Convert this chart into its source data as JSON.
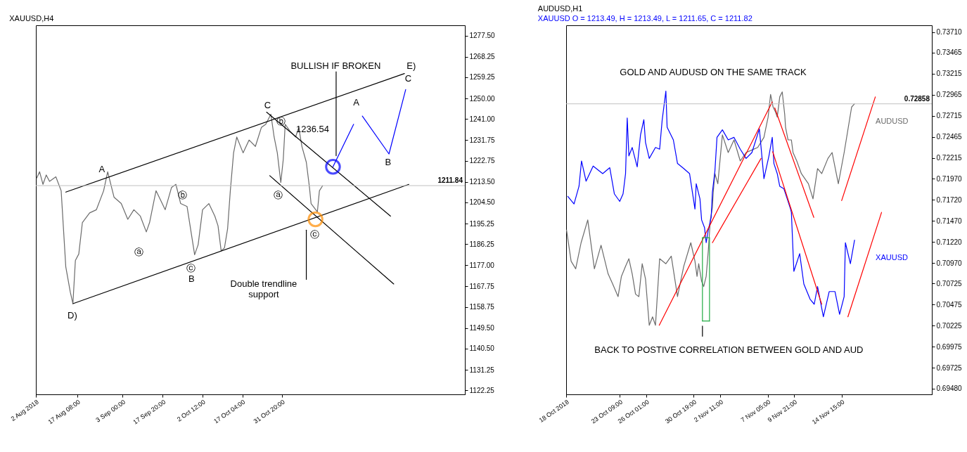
{
  "chart_data": [
    {
      "type": "line",
      "title": "XAUUSD,H4",
      "xlim": [
        "2018-08-02T00:00",
        "2019-01-07T07:00"
      ],
      "xticks": [
        {
          "value": "2018-08-02T00:00",
          "label": "2 Aug 2018"
        },
        {
          "value": "2018-08-17T08:00",
          "label": "17 Aug 08:00"
        },
        {
          "value": "2018-09-03T00:00",
          "label": "3 Sep 00:00"
        },
        {
          "value": "2018-09-17T20:00",
          "label": "17 Sep 20:00"
        },
        {
          "value": "2018-10-02T12:00",
          "label": "2 Oct 12:00"
        },
        {
          "value": "2018-10-17T04:00",
          "label": "17 Oct 04:00"
        },
        {
          "value": "2018-10-31T20:00",
          "label": "31 Oct 20:00"
        }
      ],
      "ylim": [
        1120.5,
        1282
      ],
      "yticks": [
        {
          "value": 1277.5,
          "label": "1277.50"
        },
        {
          "value": 1268.25,
          "label": "1268.25"
        },
        {
          "value": 1259.25,
          "label": "1259.25"
        },
        {
          "value": 1250,
          "label": "1250.00"
        },
        {
          "value": 1241,
          "label": "1241.00"
        },
        {
          "value": 1231.75,
          "label": "1231.75"
        },
        {
          "value": 1222.75,
          "label": "1222.75"
        },
        {
          "value": 1213.5,
          "label": "1213.50"
        },
        {
          "value": 1204.5,
          "label": "1204.50"
        },
        {
          "value": 1195.25,
          "label": "1195.25"
        },
        {
          "value": 1186.25,
          "label": "1186.25"
        },
        {
          "value": 1177,
          "label": "1177.00"
        },
        {
          "value": 1167.75,
          "label": "1167.75"
        },
        {
          "value": 1158.75,
          "label": "1158.75"
        },
        {
          "value": 1149.5,
          "label": "1149.50"
        },
        {
          "value": 1140.5,
          "label": "1140.50"
        },
        {
          "value": 1131.25,
          "label": "1131.25"
        },
        {
          "value": 1122.25,
          "label": "1122.25"
        }
      ],
      "series": [
        {
          "color": "#6b6b6b",
          "x": [
            "2018-08-02T07:00",
            "2018-08-03T09:00",
            "2018-08-04T15:00",
            "2018-08-05T20:00",
            "2018-08-07T01:00",
            "2018-08-09T09:00",
            "2018-08-11T08:00",
            "2018-08-13T01:00",
            "2018-08-14T17:00",
            "2018-08-15T16:00",
            "2018-08-16T14:00",
            "2018-08-17T20:00",
            "2018-08-19T04:00",
            "2018-08-21T20:00",
            "2018-08-24T08:00",
            "2018-08-27T00:00",
            "2018-08-28T12:00",
            "2018-08-30T20:00",
            "2018-09-02T12:00",
            "2018-09-04T22:00",
            "2018-09-07T04:00",
            "2018-09-09T13:00",
            "2018-09-11T18:00",
            "2018-09-12T23:00",
            "2018-09-15T08:00",
            "2018-09-16T12:00",
            "2018-09-18T17:00",
            "2018-09-21T01:00",
            "2018-09-22T16:00",
            "2018-09-24T10:00",
            "2018-09-26T19:00",
            "2018-09-29T14:00",
            "2018-09-30T21:00",
            "2018-10-02T12:00",
            "2018-10-04T20:00",
            "2018-10-07T01:00",
            "2018-10-08T05:00",
            "2018-10-09T09:00",
            "2018-10-10T14:00",
            "2018-10-11T18:00",
            "2018-10-12T18:00",
            "2018-10-13T23:00",
            "2018-10-15T03:00",
            "2018-10-17T11:00",
            "2018-10-19T16:00",
            "2018-10-22T00:00",
            "2018-10-24T05:00",
            "2018-10-25T20:00",
            "2018-10-27T17:00",
            "2018-10-28T22:00",
            "2018-10-30T02:00",
            "2018-10-31T09:00",
            "2018-11-01T07:00",
            "2018-11-02T00:00",
            "2018-11-03T15:00",
            "2018-11-05T20:00",
            "2018-11-07T00:00",
            "2018-11-08T04:00",
            "2018-11-09T19:00",
            "2018-11-10T23:00",
            "2018-11-11T13:00",
            "2018-11-13T21:00",
            "2018-11-14T15:00",
            "2018-11-15T19:00"
          ],
          "values": [
            1215.1,
            1217.9,
            1212.4,
            1216.5,
            1213.7,
            1215.7,
            1209.6,
            1176.3,
            1165.2,
            1160.2,
            1179.1,
            1181.9,
            1195.7,
            1199.9,
            1201.3,
            1209.6,
            1217.9,
            1206.8,
            1204.0,
            1197.1,
            1201.3,
            1198.5,
            1191.6,
            1195.7,
            1209.6,
            1206.8,
            1201.3,
            1211.0,
            1212.4,
            1204.0,
            1202.7,
            1181.6,
            1186.0,
            1201.3,
            1204.0,
            1198.5,
            1194.3,
            1183.3,
            1184.6,
            1193.0,
            1209.6,
            1226.2,
            1233.1,
            1226.2,
            1231.8,
            1229.0,
            1237.3,
            1238.7,
            1243.1,
            1233.1,
            1226.2,
            1213.2,
            1223.4,
            1238.7,
            1235.9,
            1233.1,
            1237.3,
            1229.0,
            1222.1,
            1211.0,
            1204.0,
            1200.4,
            1209.6,
            1211.8
          ]
        },
        {
          "color": "#000000",
          "x": [
            "2018-08-13T01:00",
            "2018-12-16T00:00"
          ],
          "values": [
            1209.0,
            1260.9
          ]
        },
        {
          "color": "#000000",
          "x": [
            "2018-08-15T16:00",
            "2018-12-17T15:00"
          ],
          "values": [
            1160.2,
            1212.4
          ]
        },
        {
          "color": "#000000",
          "x": [
            "2018-10-26T03:00",
            "2018-12-10T21:00"
          ],
          "values": [
            1244.0,
            1198.5
          ]
        },
        {
          "color": "#000000",
          "x": [
            "2018-10-27T07:00",
            "2018-12-12T01:00"
          ],
          "values": [
            1216.2,
            1168.8
          ]
        },
        {
          "color": "#0000ff",
          "x": [
            "2018-11-19T15:00",
            "2018-11-27T06:00"
          ],
          "values": [
            1220.1,
            1238.7
          ]
        },
        {
          "color": "#0000ff",
          "x": [
            "2018-11-30T11:00",
            "2018-12-10T07:00",
            "2018-12-16T11:00"
          ],
          "values": [
            1242.3,
            1225.7,
            1253.9
          ]
        },
        {
          "color": "#000000",
          "x": [
            "2018-11-20T19:00",
            "2018-11-20T19:00"
          ],
          "values": [
            1261.7,
            1224.9
          ]
        },
        {
          "color": "#000000",
          "x": [
            "2018-11-09T19:00",
            "2018-11-09T19:00"
          ],
          "values": [
            1192.4,
            1170.8
          ]
        },
        {
          "type": "scatter",
          "marker": "circle",
          "color": "#0000ff",
          "x": [
            "2018-11-19T15:00"
          ],
          "values": [
            1220.1
          ]
        },
        {
          "type": "scatter",
          "marker": "circle",
          "color": "#ff8c00",
          "x": [
            "2018-11-13T04:00"
          ],
          "values": [
            1197.1
          ]
        }
      ],
      "ref_lines": [
        {
          "axis": "y",
          "value": 1211.84,
          "label": "1211.84",
          "color": "#c0c0c0"
        }
      ],
      "annotations": [
        "A",
        "B",
        "C",
        "ⓐ",
        "ⓑ",
        "ⓒ",
        "ⓐ",
        "ⓑ",
        "ⓒ",
        "D)",
        "E)",
        "C",
        "A",
        "B",
        "BULLISH IF BROKEN",
        "Double trendline\nsupport",
        "1236.54"
      ]
    },
    {
      "type": "line",
      "title": "AUDUSD,H1",
      "subtitle": "XAUUSD O = 1213.49, H = 1213.49, L = 1211.65, C = 1211.82",
      "xlim": [
        "2018-10-18T00:00",
        "2018-11-23T16:00"
      ],
      "xticks": [
        {
          "value": "2018-10-18T00:00",
          "label": "18 Oct 2018"
        },
        {
          "value": "2018-10-23T09:00",
          "label": "23 Oct 09:00"
        },
        {
          "value": "2018-10-26T01:00",
          "label": "26 Oct 01:00"
        },
        {
          "value": "2018-10-30T19:00",
          "label": "30 Oct 19:00"
        },
        {
          "value": "2018-11-02T11:00",
          "label": "2 Nov 11:00"
        },
        {
          "value": "2018-11-07T05:00",
          "label": "7 Nov 05:00"
        },
        {
          "value": "2018-11-09T21:00",
          "label": "9 Nov 21:00"
        },
        {
          "value": "2018-11-14T15:00",
          "label": "14 Nov 15:00"
        }
      ],
      "ylim": [
        0.6941,
        0.7379
      ],
      "yticks": [
        {
          "value": 0.7371,
          "label": "0.73710"
        },
        {
          "value": 0.73465,
          "label": "0.73465"
        },
        {
          "value": 0.73215,
          "label": "0.73215"
        },
        {
          "value": 0.72965,
          "label": "0.72965"
        },
        {
          "value": 0.72715,
          "label": "0.72715"
        },
        {
          "value": 0.72465,
          "label": "0.72465"
        },
        {
          "value": 0.72215,
          "label": "0.72215"
        },
        {
          "value": 0.7197,
          "label": "0.71970"
        },
        {
          "value": 0.7172,
          "label": "0.71720"
        },
        {
          "value": 0.7147,
          "label": "0.71470"
        },
        {
          "value": 0.7122,
          "label": "0.71220"
        },
        {
          "value": 0.7097,
          "label": "0.70970"
        },
        {
          "value": 0.70725,
          "label": "0.70725"
        },
        {
          "value": 0.70475,
          "label": "0.70475"
        },
        {
          "value": 0.70225,
          "label": "0.70225"
        },
        {
          "value": 0.69975,
          "label": "0.69975"
        },
        {
          "value": 0.69725,
          "label": "0.69725"
        },
        {
          "value": 0.6948,
          "label": "0.69480"
        }
      ],
      "series": [
        {
          "name": "AUDUSD",
          "color": "#6b6b6b",
          "x": [
            "2018-10-18T01:00",
            "2018-10-18T12:00",
            "2018-10-18T23:00",
            "2018-10-19T12:00",
            "2018-10-20T04:00",
            "2018-10-20T20:00",
            "2018-10-21T12:00",
            "2018-10-22T05:00",
            "2018-10-22T16:00",
            "2018-10-23T05:00",
            "2018-10-23T13:00",
            "2018-10-23T23:00",
            "2018-10-24T07:00",
            "2018-10-24T15:00",
            "2018-10-24T23:00",
            "2018-10-25T07:00",
            "2018-10-25T15:00",
            "2018-10-25T23:00",
            "2018-10-26T08:00",
            "2018-10-26T16:00",
            "2018-10-26T23:00",
            "2018-10-27T09:00",
            "2018-10-28T00:00",
            "2018-10-28T13:00",
            "2018-10-29T04:00",
            "2018-10-29T19:00",
            "2018-10-30T12:00",
            "2018-10-30T22:00",
            "2018-10-31T03:00",
            "2018-10-31T07:00",
            "2018-10-31T14:00",
            "2018-10-31T19:00",
            "2018-11-01T01:00",
            "2018-11-01T06:00",
            "2018-11-01T11:00",
            "2018-11-01T16:00",
            "2018-11-01T18:00",
            "2018-11-01T22:00",
            "2018-11-02T05:00",
            "2018-11-02T16:00",
            "2018-11-03T06:00",
            "2018-11-03T20:00",
            "2018-11-04T11:00",
            "2018-11-05T01:00",
            "2018-11-05T15:00",
            "2018-11-06T05:00",
            "2018-11-06T20:00",
            "2018-11-07T06:00",
            "2018-11-07T12:00",
            "2018-11-07T18:00",
            "2018-11-08T00:00",
            "2018-11-08T04:00",
            "2018-11-08T10:00",
            "2018-11-08T16:00",
            "2018-11-08T22:00",
            "2018-11-09T00:00",
            "2018-11-09T06:00",
            "2018-11-09T14:00",
            "2018-11-09T18:00",
            "2018-11-10T03:00",
            "2018-11-10T14:00",
            "2018-11-11T07:00",
            "2018-11-11T18:00",
            "2018-11-12T05:00",
            "2018-11-12T15:00",
            "2018-11-13T06:00",
            "2018-11-13T16:00",
            "2018-11-14T07:00",
            "2018-11-14T21:00",
            "2018-11-15T05:00",
            "2018-11-15T15:00",
            "2018-11-15T22:00"
          ],
          "values": [
            0.7136,
            0.7099,
            0.709,
            0.7121,
            0.7148,
            0.709,
            0.7118,
            0.7084,
            0.7072,
            0.7057,
            0.7081,
            0.7093,
            0.7102,
            0.7084,
            0.706,
            0.7057,
            0.7096,
            0.7078,
            0.7023,
            0.7033,
            0.7023,
            0.7102,
            0.7096,
            0.7105,
            0.7057,
            0.7093,
            0.7121,
            0.7099,
            0.7081,
            0.7096,
            0.7075,
            0.7069,
            0.7081,
            0.7111,
            0.7148,
            0.7163,
            0.7181,
            0.7203,
            0.7191,
            0.7249,
            0.7228,
            0.7243,
            0.7218,
            0.7228,
            0.7231,
            0.7234,
            0.7246,
            0.727,
            0.7297,
            0.7282,
            0.7276,
            0.727,
            0.7294,
            0.73,
            0.7273,
            0.7258,
            0.7243,
            0.7243,
            0.7228,
            0.7218,
            0.7203,
            0.7191,
            0.7173,
            0.7209,
            0.7203,
            0.7221,
            0.7228,
            0.7191,
            0.7228,
            0.7252,
            0.7282,
            0.72858
          ]
        },
        {
          "name": "XAUUSD",
          "color": "#0000ff",
          "x": [
            "2018-10-18T04:00",
            "2018-10-18T19:00",
            "2018-10-19T07:00",
            "2018-10-19T13:00",
            "2018-10-20T00:00",
            "2018-10-20T17:00",
            "2018-10-21T16:00",
            "2018-10-22T09:00",
            "2018-10-22T20:00",
            "2018-10-23T09:00",
            "2018-10-23T17:00",
            "2018-10-23T23:00",
            "2018-10-24T03:00",
            "2018-10-24T07:00",
            "2018-10-24T15:00",
            "2018-10-25T03:00",
            "2018-10-25T11:00",
            "2018-10-25T19:00",
            "2018-10-25T23:00",
            "2018-10-26T08:00",
            "2018-10-26T23:00",
            "2018-10-27T09:00",
            "2018-10-27T15:00",
            "2018-10-28T00:00",
            "2018-10-28T03:00",
            "2018-10-28T18:00",
            "2018-10-29T04:00",
            "2018-10-29T19:00",
            "2018-10-30T09:00",
            "2018-10-30T22:00",
            "2018-10-31T01:00",
            "2018-10-31T10:00",
            "2018-10-31T14:00",
            "2018-10-31T21:00",
            "2018-11-01T01:00",
            "2018-11-01T06:00",
            "2018-11-01T13:00",
            "2018-11-01T16:00",
            "2018-11-01T22:00",
            "2018-11-02T03:00",
            "2018-11-02T16:00",
            "2018-11-03T06:00",
            "2018-11-03T20:00",
            "2018-11-04T11:00",
            "2018-11-05T01:00",
            "2018-11-05T15:00",
            "2018-11-06T09:00",
            "2018-11-06T20:00",
            "2018-11-07T08:00",
            "2018-11-07T16:00",
            "2018-11-07T20:00",
            "2018-11-08T04:00",
            "2018-11-08T10:00",
            "2018-11-08T20:00",
            "2018-11-09T04:00",
            "2018-11-09T12:00",
            "2018-11-09T14:00",
            "2018-11-09T20:00",
            "2018-11-10T10:00",
            "2018-11-10T20:00",
            "2018-11-11T11:00",
            "2018-11-11T21:00",
            "2018-11-12T05:00",
            "2018-11-12T19:00",
            "2018-11-13T09:00",
            "2018-11-13T23:00",
            "2018-11-14T10:00",
            "2018-11-14T21:00",
            "2018-11-15T00:00",
            "2018-11-15T12:00",
            "2018-11-15T22:00"
          ],
          "values": [
            0.7176,
            0.7167,
            0.7188,
            0.7218,
            0.7194,
            0.7212,
            0.7203,
            0.721,
            0.7179,
            0.717,
            0.7179,
            0.7203,
            0.7269,
            0.7224,
            0.7234,
            0.7211,
            0.7249,
            0.7267,
            0.724,
            0.7221,
            0.7234,
            0.7232,
            0.7266,
            0.7301,
            0.7258,
            0.7243,
            0.7215,
            0.7209,
            0.7203,
            0.7161,
            0.7191,
            0.7173,
            0.7148,
            0.7139,
            0.7121,
            0.7136,
            0.7151,
            0.7181,
            0.7206,
            0.7246,
            0.7255,
            0.7243,
            0.7246,
            0.7232,
            0.7221,
            0.7228,
            0.7256,
            0.7197,
            0.7224,
            0.7246,
            0.7215,
            0.7203,
            0.7188,
            0.7185,
            0.7173,
            0.7161,
            0.7157,
            0.7087,
            0.7108,
            0.7072,
            0.7054,
            0.7048,
            0.7069,
            0.7033,
            0.7063,
            0.7063,
            0.7036,
            0.7057,
            0.7121,
            0.7096,
            0.7124
          ]
        },
        {
          "color": "#ff0000",
          "x": [
            "2018-10-27T08:00",
            "2018-11-07T16:00"
          ],
          "values": [
            0.7023,
            0.7288
          ]
        },
        {
          "color": "#ff0000",
          "x": [
            "2018-11-01T16:00",
            "2018-11-06T13:00"
          ],
          "values": [
            0.7121,
            0.7221
          ]
        },
        {
          "color": "#ff0000",
          "x": [
            "2018-11-07T22:00",
            "2018-11-11T20:00"
          ],
          "values": [
            0.7281,
            0.7151
          ]
        },
        {
          "color": "#ff0000",
          "x": [
            "2018-11-07T17:00",
            "2018-11-12T15:00"
          ],
          "values": [
            0.7229,
            0.7048
          ]
        },
        {
          "color": "#ff0000",
          "x": [
            "2018-11-14T15:00",
            "2018-11-18T00:00"
          ],
          "values": [
            0.7171,
            0.7294
          ]
        },
        {
          "color": "#ff0000",
          "x": [
            "2018-11-15T06:00",
            "2018-11-18T15:00"
          ],
          "values": [
            0.7033,
            0.7157
          ]
        },
        {
          "color": "#22aa44",
          "x": [
            "2018-10-31T16:00",
            "2018-11-01T09:00"
          ],
          "values": [
            0.7127,
            0.7127
          ]
        },
        {
          "color": "#22aa44",
          "x": [
            "2018-11-01T09:00",
            "2018-11-01T09:00"
          ],
          "values": [
            0.7127,
            0.7028
          ]
        },
        {
          "color": "#22aa44",
          "x": [
            "2018-10-31T16:00",
            "2018-11-01T09:00"
          ],
          "values": [
            0.7028,
            0.7028
          ]
        },
        {
          "color": "#22aa44",
          "x": [
            "2018-10-31T16:00",
            "2018-10-31T16:00"
          ],
          "values": [
            0.7127,
            0.7028
          ]
        },
        {
          "color": "#000000",
          "x": [
            "2018-10-31T16:00",
            "2018-10-31T16:00"
          ],
          "values": [
            0.701,
            0.7022
          ]
        }
      ],
      "ref_lines": [
        {
          "axis": "y",
          "value": 0.72858,
          "label": "0.72858",
          "color": "#c0c0c0"
        }
      ],
      "annotations": [
        "GOLD AND AUDUSD ON THE SAME TRACK",
        "BACK TO POSTIVE CORRELATION BETWEEN GOLD AND AUD"
      ]
    }
  ]
}
